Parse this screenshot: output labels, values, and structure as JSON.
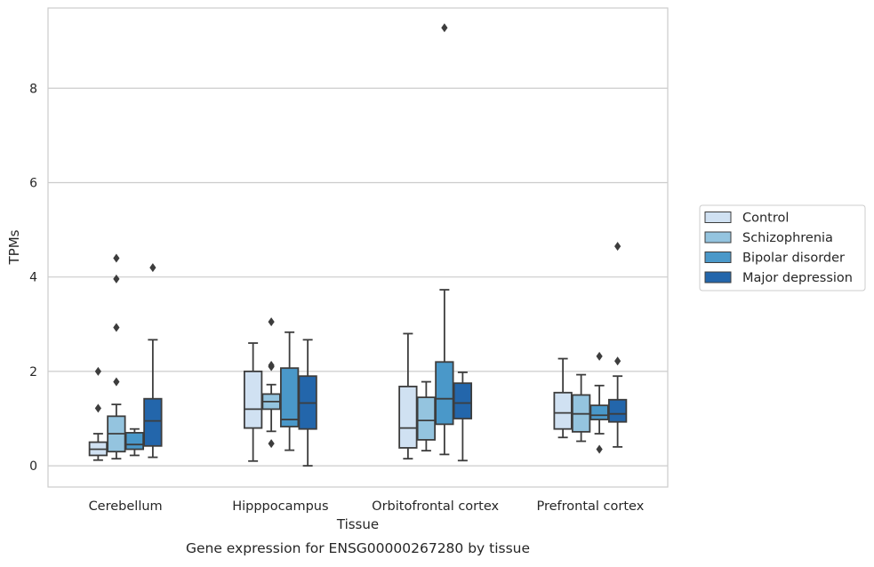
{
  "chart_data": {
    "type": "boxplot",
    "caption": "Gene expression for ENSG00000267280 by tissue",
    "xlabel": "Tissue",
    "ylabel": "TPMs",
    "ylim": [
      -0.45,
      9.7
    ],
    "yticks": [
      0,
      2,
      4,
      6,
      8
    ],
    "grid": "horizontal",
    "legend_position": "right",
    "categories": [
      "Cerebellum",
      "Hipppocampus",
      "Orbitofrontal cortex",
      "Prefrontal cortex"
    ],
    "series": [
      {
        "name": "Control",
        "color": "#d0e1f2",
        "boxes": [
          {
            "whislo": 0.12,
            "q1": 0.22,
            "med": 0.35,
            "q3": 0.5,
            "whishi": 0.68,
            "fliers": [
              1.22,
              2.0
            ]
          },
          {
            "whislo": 0.1,
            "q1": 0.8,
            "med": 1.2,
            "q3": 2.0,
            "whishi": 2.6,
            "fliers": []
          },
          {
            "whislo": 0.15,
            "q1": 0.38,
            "med": 0.8,
            "q3": 1.68,
            "whishi": 2.8,
            "fliers": []
          },
          {
            "whislo": 0.6,
            "q1": 0.78,
            "med": 1.12,
            "q3": 1.55,
            "whishi": 2.27,
            "fliers": []
          }
        ]
      },
      {
        "name": "Schizophrenia",
        "color": "#94c4df",
        "boxes": [
          {
            "whislo": 0.15,
            "q1": 0.3,
            "med": 0.68,
            "q3": 1.05,
            "whishi": 1.3,
            "fliers": [
              1.78,
              2.93,
              3.96,
              4.4
            ]
          },
          {
            "whislo": 0.73,
            "q1": 1.2,
            "med": 1.36,
            "q3": 1.52,
            "whishi": 1.72,
            "fliers": [
              0.47,
              2.1,
              2.13,
              3.05
            ]
          },
          {
            "whislo": 0.32,
            "q1": 0.55,
            "med": 0.96,
            "q3": 1.45,
            "whishi": 1.78,
            "fliers": []
          },
          {
            "whislo": 0.52,
            "q1": 0.72,
            "med": 1.1,
            "q3": 1.5,
            "whishi": 1.93,
            "fliers": []
          }
        ]
      },
      {
        "name": "Bipolar disorder",
        "color": "#4a98c9",
        "boxes": [
          {
            "whislo": 0.22,
            "q1": 0.35,
            "med": 0.45,
            "q3": 0.7,
            "whishi": 0.78,
            "fliers": []
          },
          {
            "whislo": 0.33,
            "q1": 0.83,
            "med": 0.98,
            "q3": 2.07,
            "whishi": 2.83,
            "fliers": []
          },
          {
            "whislo": 0.24,
            "q1": 0.88,
            "med": 1.42,
            "q3": 2.2,
            "whishi": 3.73,
            "fliers": [
              9.28
            ]
          },
          {
            "whislo": 0.68,
            "q1": 0.98,
            "med": 1.07,
            "q3": 1.28,
            "whishi": 1.7,
            "fliers": [
              0.35,
              2.32
            ]
          }
        ]
      },
      {
        "name": "Major depression",
        "color": "#2366ab",
        "boxes": [
          {
            "whislo": 0.18,
            "q1": 0.42,
            "med": 0.95,
            "q3": 1.42,
            "whishi": 2.67,
            "fliers": [
              4.2
            ]
          },
          {
            "whislo": 0.0,
            "q1": 0.78,
            "med": 1.33,
            "q3": 1.9,
            "whishi": 2.67,
            "fliers": []
          },
          {
            "whislo": 0.11,
            "q1": 1.0,
            "med": 1.33,
            "q3": 1.75,
            "whishi": 1.98,
            "fliers": []
          },
          {
            "whislo": 0.4,
            "q1": 0.93,
            "med": 1.1,
            "q3": 1.4,
            "whishi": 1.9,
            "fliers": [
              2.22,
              4.65
            ]
          }
        ]
      }
    ]
  }
}
